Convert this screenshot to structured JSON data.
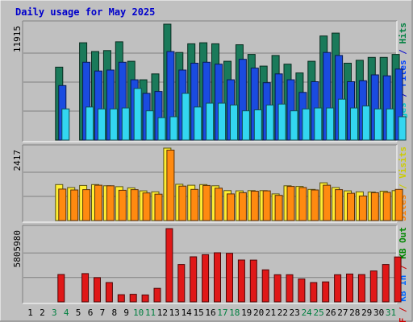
{
  "chart_data": {
    "type": "bar",
    "title": "Daily usage for May 2025",
    "days": [
      "1",
      "2",
      "3",
      "4",
      "5",
      "6",
      "7",
      "8",
      "9",
      "10",
      "11",
      "12",
      "13",
      "14",
      "15",
      "16",
      "17",
      "18",
      "19",
      "20",
      "21",
      "22",
      "23",
      "24",
      "25",
      "26",
      "27",
      "28",
      "29",
      "30",
      "31"
    ],
    "weekend_days": [
      "3",
      "4",
      "10",
      "11",
      "17",
      "18",
      "24",
      "25",
      "31"
    ],
    "panels": [
      {
        "id": "hits-files-pages",
        "axis_max_label": "11915",
        "ymax": 11915,
        "right_label": [
          {
            "text": "Pages",
            "color": "#00cccc"
          },
          {
            "text": " / ",
            "color": "#0000cc"
          },
          {
            "text": "Files",
            "color": "#0044ff"
          },
          {
            "text": " / ",
            "color": "#0000cc"
          },
          {
            "text": "Hits",
            "color": "#008040"
          }
        ],
        "series": [
          {
            "name": "Hits",
            "color": "#1a7a5a",
            "values": [
              0,
              0,
              7500,
              0,
              10000,
              9100,
              9200,
              10100,
              8100,
              6200,
              6800,
              11915,
              9000,
              9900,
              10000,
              9900,
              8100,
              9800,
              8800,
              7600,
              8700,
              7800,
              6900,
              8100,
              10700,
              11000,
              7900,
              8200,
              8500,
              8500,
              8800
            ]
          },
          {
            "name": "Files",
            "color": "#1a4be0",
            "values": [
              0,
              0,
              5600,
              0,
              8000,
              7100,
              7200,
              8000,
              6200,
              4800,
              5000,
              9100,
              7200,
              7900,
              8000,
              7800,
              6200,
              8300,
              7400,
              5900,
              6800,
              6200,
              4900,
              6000,
              9000,
              8700,
              6000,
              6100,
              6700,
              6600,
              7300
            ]
          },
          {
            "name": "Pages",
            "color": "#33d6f0",
            "values": [
              0,
              0,
              3200,
              0,
              3400,
              3200,
              3200,
              3300,
              5300,
              3000,
              2300,
              2400,
              4800,
              3400,
              3800,
              3800,
              3600,
              3000,
              3100,
              3600,
              3700,
              3000,
              3200,
              3300,
              3300,
              4200,
              3300,
              3500,
              3200,
              3200,
              2400
            ]
          }
        ]
      },
      {
        "id": "visits-sites",
        "axis_max_label": "2417",
        "ymax": 2417,
        "right_label": [
          {
            "text": "Sites",
            "color": "#ff8000"
          },
          {
            "text": " / ",
            "color": "#cccc00"
          },
          {
            "text": "Visits",
            "color": "#cccc00"
          }
        ],
        "series": [
          {
            "name": "Visits",
            "color": "#ffee33",
            "values": [
              0,
              0,
              1200,
              1100,
              1170,
              1200,
              1160,
              1130,
              1090,
              990,
              960,
              2417,
              1210,
              1180,
              1200,
              1160,
              1000,
              990,
              1000,
              1000,
              890,
              1160,
              1140,
              1040,
              1260,
              1100,
              990,
              960,
              950,
              980,
              1000
            ]
          },
          {
            "name": "Sites",
            "color": "#ff8a10",
            "values": [
              0,
              0,
              1050,
              1020,
              1030,
              1180,
              1160,
              1010,
              1030,
              920,
              880,
              2350,
              1150,
              1040,
              1170,
              1080,
              890,
              930,
              980,
              990,
              840,
              1140,
              1100,
              1020,
              1180,
              1030,
              910,
              820,
              930,
              940,
              1040
            ]
          }
        ]
      },
      {
        "id": "kbytes",
        "axis_max_label": "5805980",
        "ymax": 5805980,
        "right_label": [
          {
            "text": "KB F",
            "color": "#cc0000"
          },
          {
            "text": " / ",
            "color": "#cc0000"
          },
          {
            "text": "KB In",
            "color": "#0066ff"
          },
          {
            "text": " / ",
            "color": "#cc0000"
          },
          {
            "text": "KB Out",
            "color": "#008800"
          }
        ],
        "series": [
          {
            "name": "KB F",
            "color": "#e01818",
            "values": [
              0,
              0,
              2170000,
              0,
              2240000,
              1920000,
              1530000,
              570000,
              600000,
              550000,
              1070000,
              5805980,
              2960000,
              3570000,
              3740000,
              3890000,
              3850000,
              3320000,
              3310000,
              2540000,
              2150000,
              2150000,
              1810000,
              1530000,
              1580000,
              2150000,
              2210000,
              2160000,
              2450000,
              2960000,
              3560000
            ]
          }
        ]
      }
    ]
  }
}
